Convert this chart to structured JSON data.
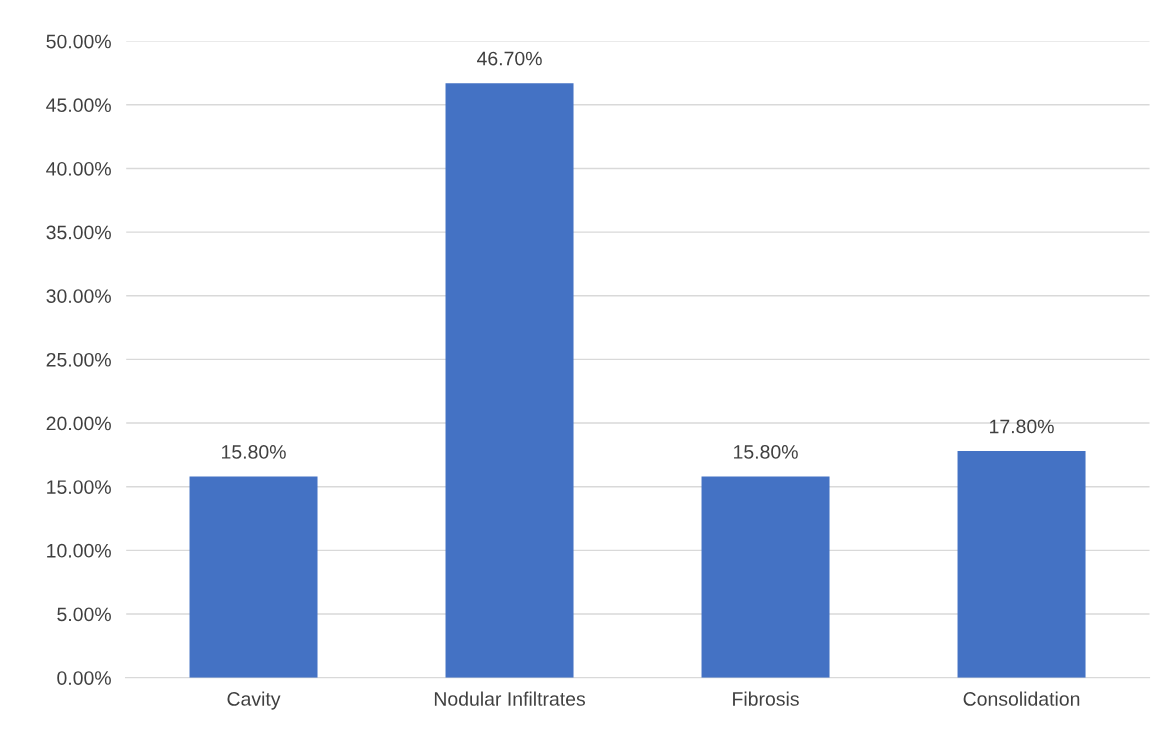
{
  "chart_data": {
    "type": "bar",
    "categories": [
      "Cavity",
      "Nodular Infiltrates",
      "Fibrosis",
      "Consolidation"
    ],
    "values": [
      15.8,
      46.7,
      15.8,
      17.8
    ],
    "value_labels": [
      "15.80%",
      "46.70%",
      "15.80%",
      "17.80%"
    ],
    "color": "#4472c4",
    "ylim": [
      0,
      50
    ],
    "yticks": [
      {
        "value": 0,
        "label": "0.00%"
      },
      {
        "value": 5,
        "label": "5.00%"
      },
      {
        "value": 10,
        "label": "10.00%"
      },
      {
        "value": 15,
        "label": "15.00%"
      },
      {
        "value": 20,
        "label": "20.00%"
      },
      {
        "value": 25,
        "label": "25.00%"
      },
      {
        "value": 30,
        "label": "30.00%"
      },
      {
        "value": 35,
        "label": "35.00%"
      },
      {
        "value": 40,
        "label": "40.00%"
      },
      {
        "value": 45,
        "label": "45.00%"
      },
      {
        "value": 50,
        "label": "50.00%"
      }
    ],
    "grid": "y"
  }
}
